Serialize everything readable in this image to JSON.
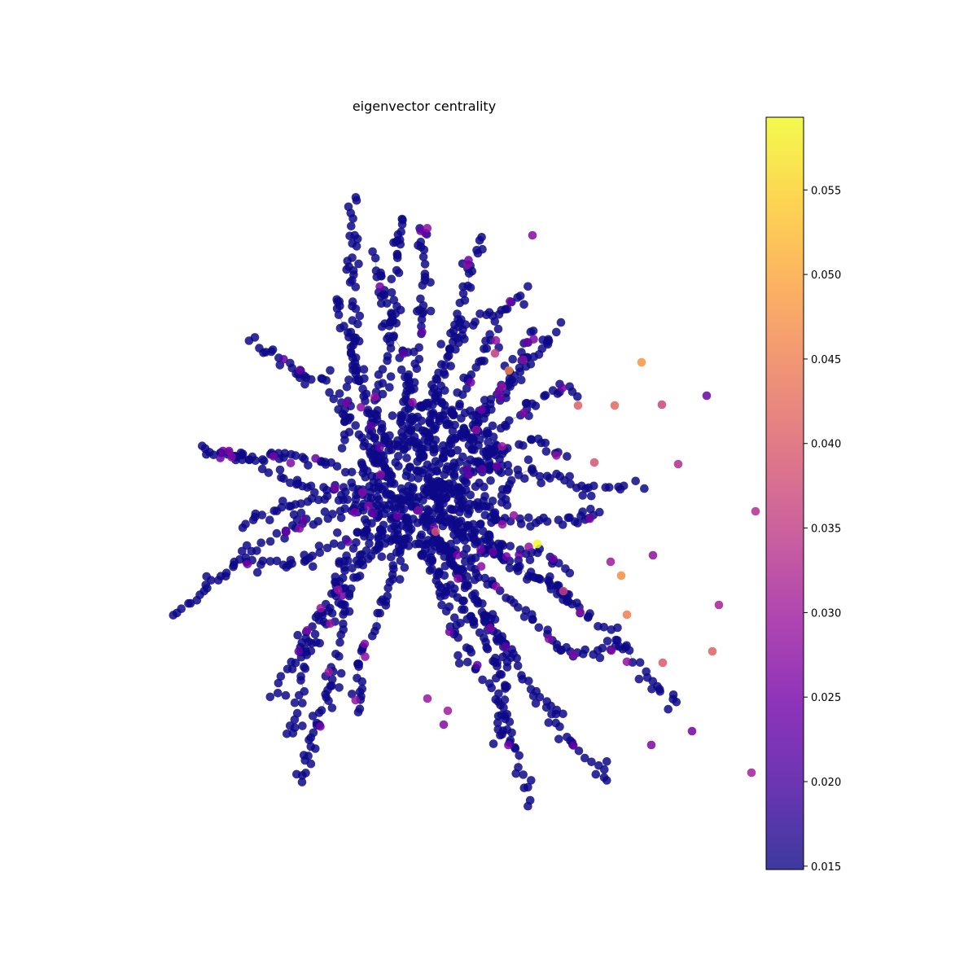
{
  "chart_data": {
    "type": "scatter",
    "title": "eigenvector centrality",
    "xlabel": "",
    "ylabel": "",
    "grid": false,
    "axes_visible": false,
    "colormap": "plasma",
    "node_color": "#0d0887",
    "edge_color": "#bdbdbd",
    "colorbar": {
      "min": 0.0148,
      "max": 0.0593,
      "ticks": [
        "0.015",
        "0.020",
        "0.025",
        "0.030",
        "0.035",
        "0.040",
        "0.045",
        "0.050",
        "0.055"
      ],
      "tick_values": [
        0.015,
        0.02,
        0.025,
        0.03,
        0.035,
        0.04,
        0.045,
        0.05,
        0.055
      ],
      "stops": [
        "#0d0887",
        "#46039f",
        "#7201a8",
        "#9c179e",
        "#bd3786",
        "#d8576b",
        "#ed7953",
        "#fb9f3a",
        "#fdca26",
        "#f0f921"
      ]
    },
    "layout_extent": {
      "xlim": [
        0,
        800
      ],
      "ylim": [
        0,
        1000
      ]
    },
    "branches": [
      [
        [
          420,
          540
        ],
        [
          440,
          420
        ],
        [
          430,
          330
        ],
        [
          435,
          240
        ]
      ],
      [
        [
          460,
          520
        ],
        [
          480,
          400
        ],
        [
          490,
          300
        ],
        [
          495,
          268
        ]
      ],
      [
        [
          500,
          500
        ],
        [
          520,
          380
        ],
        [
          520,
          300
        ],
        [
          520,
          285
        ]
      ],
      [
        [
          530,
          500
        ],
        [
          560,
          400
        ],
        [
          575,
          330
        ],
        [
          595,
          296
        ]
      ],
      [
        [
          550,
          520
        ],
        [
          590,
          440
        ],
        [
          620,
          380
        ],
        [
          645,
          355
        ]
      ],
      [
        [
          580,
          520
        ],
        [
          630,
          470
        ],
        [
          670,
          420
        ],
        [
          690,
          400
        ]
      ],
      [
        [
          560,
          540
        ],
        [
          620,
          520
        ],
        [
          680,
          480
        ],
        [
          705,
          478
        ]
      ],
      [
        [
          560,
          570
        ],
        [
          650,
          580
        ],
        [
          720,
          600
        ],
        [
          778,
          595
        ]
      ],
      [
        [
          560,
          600
        ],
        [
          620,
          640
        ],
        [
          700,
          640
        ],
        [
          740,
          628
        ]
      ],
      [
        [
          540,
          640
        ],
        [
          620,
          690
        ],
        [
          680,
          720
        ],
        [
          720,
          755
        ]
      ],
      [
        [
          540,
          660
        ],
        [
          630,
          740
        ],
        [
          700,
          800
        ],
        [
          760,
          800
        ]
      ],
      [
        [
          560,
          650
        ],
        [
          680,
          720
        ],
        [
          760,
          790
        ],
        [
          828,
          865
        ]
      ],
      [
        [
          520,
          660
        ],
        [
          560,
          780
        ],
        [
          620,
          880
        ],
        [
          648,
          980
        ]
      ],
      [
        [
          530,
          660
        ],
        [
          600,
          760
        ],
        [
          680,
          880
        ],
        [
          742,
          955
        ]
      ],
      [
        [
          520,
          680
        ],
        [
          580,
          760
        ],
        [
          620,
          840
        ],
        [
          610,
          915
        ]
      ],
      [
        [
          500,
          650
        ],
        [
          470,
          740
        ],
        [
          440,
          820
        ],
        [
          445,
          870
        ]
      ],
      [
        [
          490,
          640
        ],
        [
          420,
          720
        ],
        [
          380,
          800
        ],
        [
          360,
          900
        ]
      ],
      [
        [
          480,
          630
        ],
        [
          430,
          730
        ],
        [
          400,
          860
        ],
        [
          367,
          965
        ]
      ],
      [
        [
          470,
          620
        ],
        [
          420,
          700
        ],
        [
          380,
          780
        ],
        [
          335,
          858
        ]
      ],
      [
        [
          460,
          620
        ],
        [
          380,
          640
        ],
        [
          300,
          680
        ],
        [
          220,
          755
        ]
      ],
      [
        [
          470,
          600
        ],
        [
          380,
          600
        ],
        [
          300,
          560
        ],
        [
          250,
          554
        ]
      ],
      [
        [
          480,
          590
        ],
        [
          400,
          570
        ],
        [
          340,
          560
        ],
        [
          275,
          560
        ]
      ],
      [
        [
          470,
          580
        ],
        [
          400,
          470
        ],
        [
          370,
          460
        ],
        [
          305,
          414
        ]
      ],
      [
        [
          470,
          570
        ],
        [
          440,
          470
        ],
        [
          420,
          400
        ],
        [
          415,
          365
        ]
      ],
      [
        [
          500,
          560
        ],
        [
          500,
          460
        ],
        [
          470,
          360
        ],
        [
          460,
          320
        ]
      ],
      [
        [
          520,
          560
        ],
        [
          540,
          470
        ],
        [
          560,
          420
        ],
        [
          600,
          383
        ]
      ],
      [
        [
          540,
          560
        ],
        [
          600,
          500
        ],
        [
          640,
          440
        ],
        [
          660,
          404
        ]
      ],
      [
        [
          540,
          600
        ],
        [
          600,
          560
        ],
        [
          660,
          540
        ],
        [
          690,
          560
        ]
      ],
      [
        [
          500,
          610
        ],
        [
          450,
          650
        ],
        [
          380,
          690
        ],
        [
          300,
          690
        ]
      ],
      [
        [
          510,
          620
        ],
        [
          560,
          700
        ],
        [
          600,
          760
        ],
        [
          625,
          815
        ]
      ],
      [
        [
          520,
          620
        ],
        [
          600,
          660
        ],
        [
          680,
          690
        ],
        [
          695,
          700
        ]
      ],
      [
        [
          480,
          610
        ],
        [
          420,
          610
        ],
        [
          360,
          620
        ],
        [
          300,
          640
        ]
      ]
    ],
    "highlighted_nodes": [
      {
        "x": 470,
        "y": 668,
        "value": 0.0593
      },
      {
        "x": 598,
        "y": 445,
        "value": 0.048
      },
      {
        "x": 573,
        "y": 707,
        "value": 0.047
      },
      {
        "x": 580,
        "y": 755,
        "value": 0.045
      },
      {
        "x": 435,
        "y": 455,
        "value": 0.046
      },
      {
        "x": 520,
        "y": 498,
        "value": 0.041
      },
      {
        "x": 345,
        "y": 653,
        "value": 0.038
      },
      {
        "x": 624,
        "y": 814,
        "value": 0.04
      },
      {
        "x": 685,
        "y": 800,
        "value": 0.041
      },
      {
        "x": 565,
        "y": 498,
        "value": 0.042
      },
      {
        "x": 418,
        "y": 434,
        "value": 0.035
      },
      {
        "x": 738,
        "y": 628,
        "value": 0.033
      },
      {
        "x": 733,
        "y": 949,
        "value": 0.031
      },
      {
        "x": 623,
        "y": 497,
        "value": 0.037
      },
      {
        "x": 502,
        "y": 726,
        "value": 0.036
      },
      {
        "x": 360,
        "y": 873,
        "value": 0.03
      },
      {
        "x": 335,
        "y": 858,
        "value": 0.029
      },
      {
        "x": 355,
        "y": 890,
        "value": 0.027
      },
      {
        "x": 610,
        "y": 915,
        "value": 0.026
      },
      {
        "x": 660,
        "y": 898,
        "value": 0.025
      },
      {
        "x": 678,
        "y": 486,
        "value": 0.024
      },
      {
        "x": 643,
        "y": 570,
        "value": 0.033
      },
      {
        "x": 427,
        "y": 644,
        "value": 0.028
      },
      {
        "x": 693,
        "y": 743,
        "value": 0.031
      },
      {
        "x": 464,
        "y": 289,
        "value": 0.027
      },
      {
        "x": 540,
        "y": 568,
        "value": 0.039
      },
      {
        "x": 560,
        "y": 690,
        "value": 0.03
      },
      {
        "x": 612,
        "y": 682,
        "value": 0.028
      }
    ]
  }
}
